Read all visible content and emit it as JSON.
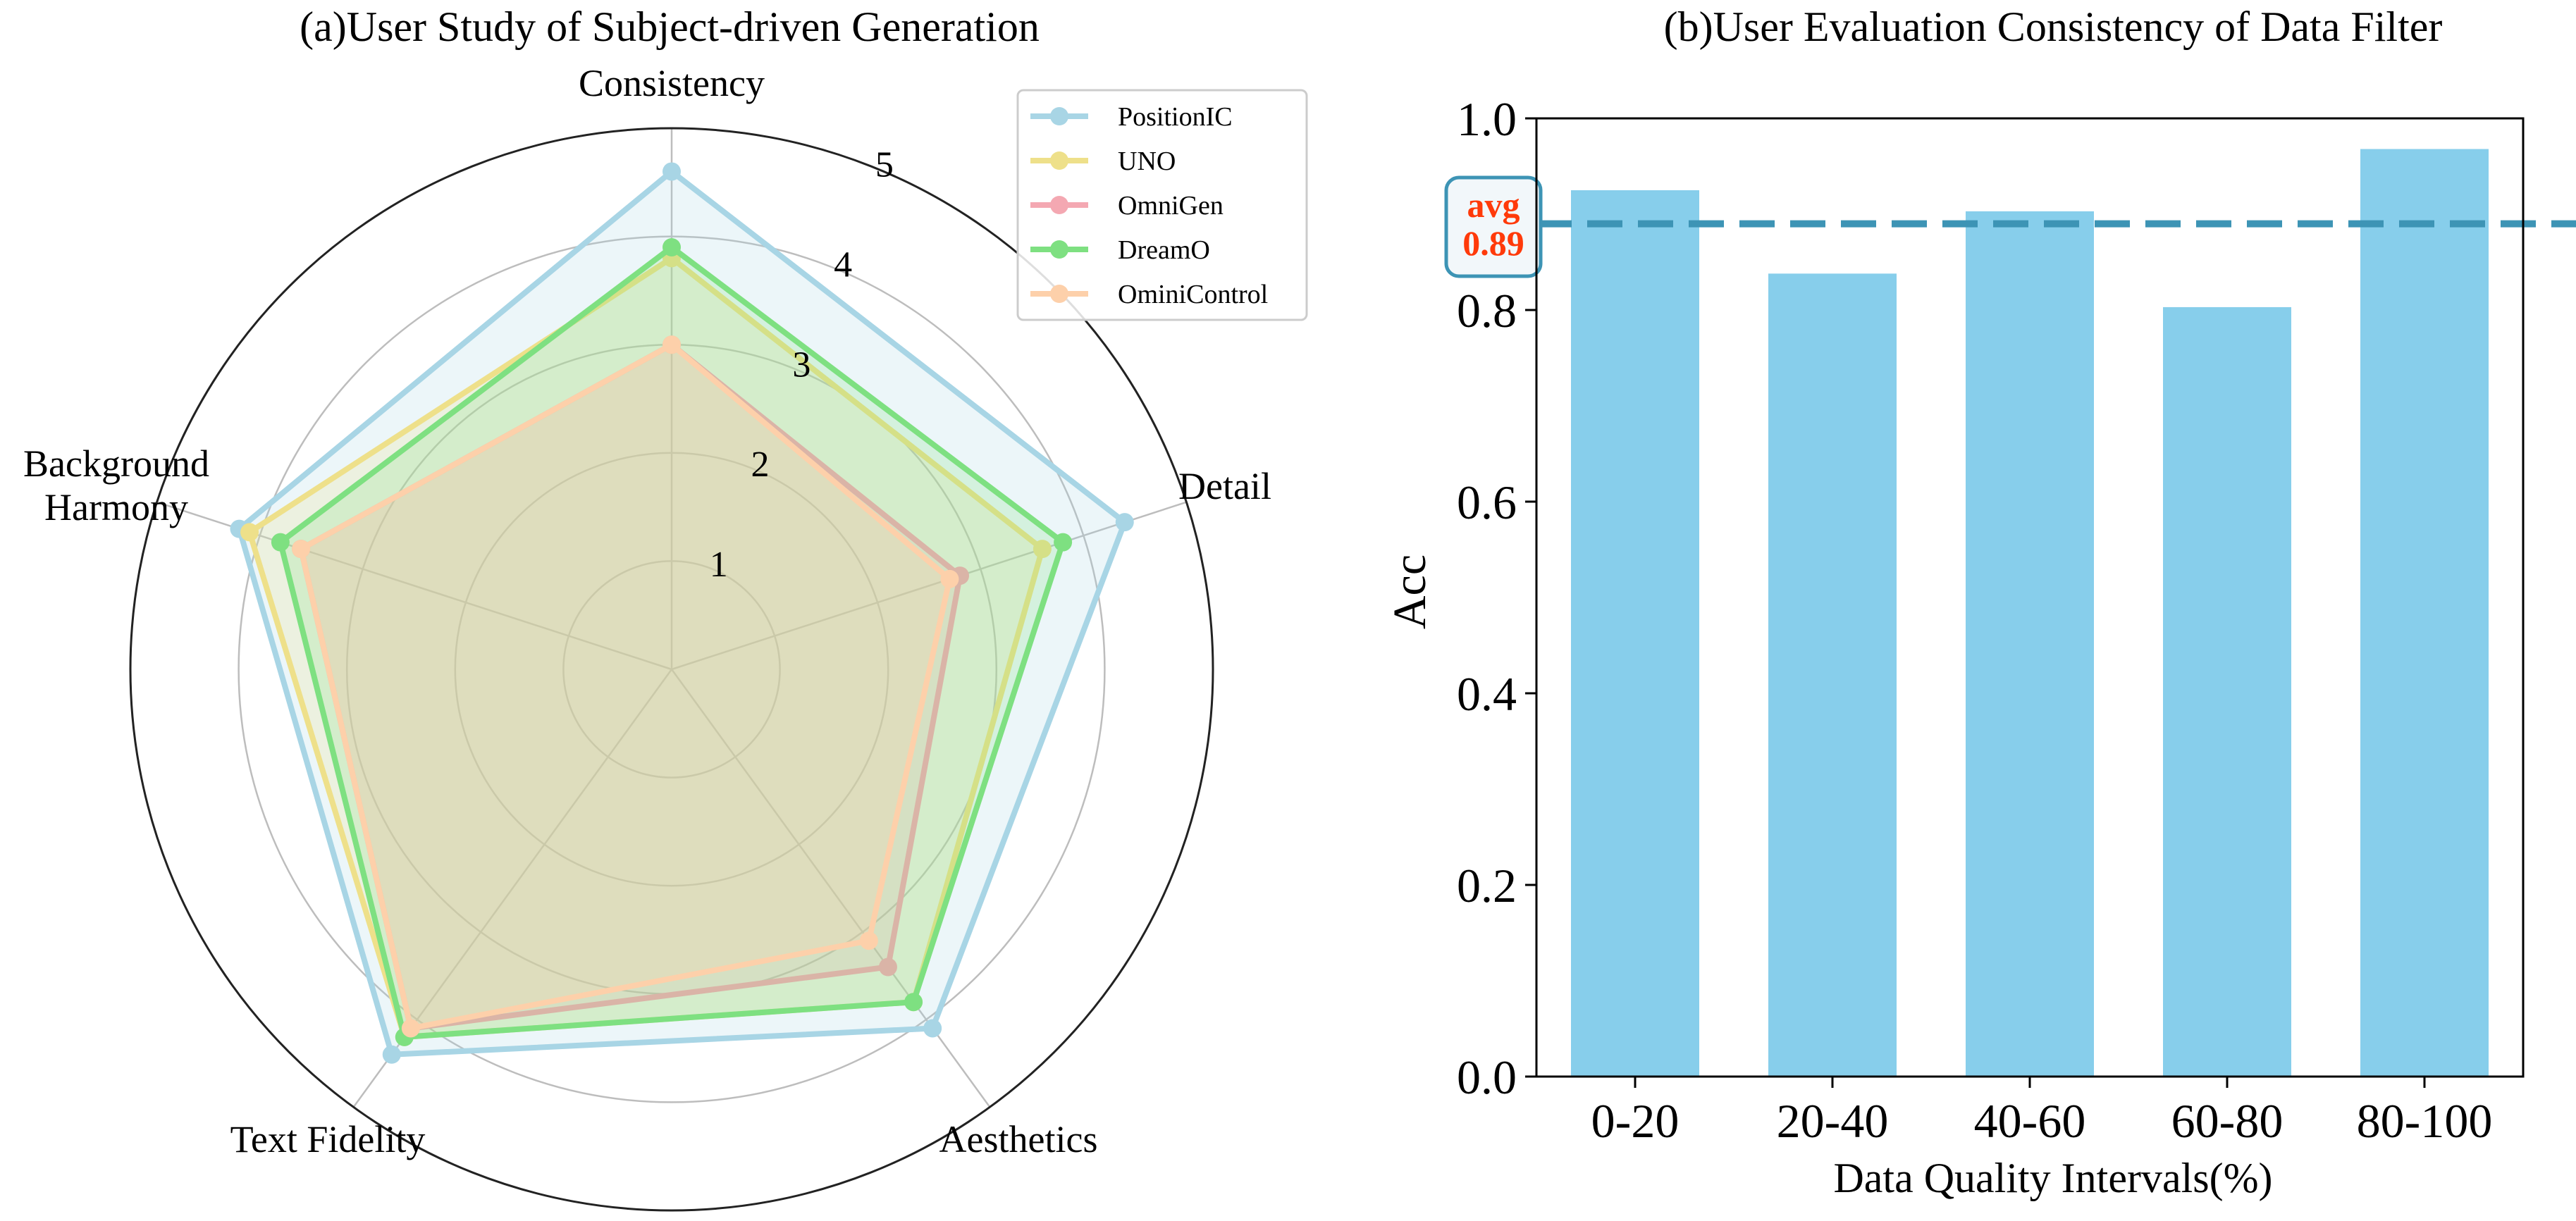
{
  "chart_data": [
    {
      "type": "radar",
      "title": "(a)User Study of Subject-driven Generation",
      "axes": [
        "Consistency",
        "Detail",
        "Aesthetics",
        "Text Fidelity",
        "Background\nHarmony"
      ],
      "radial_ticks": [
        "1",
        "2",
        "3",
        "4",
        "5"
      ],
      "rlim": [
        0,
        5
      ],
      "grid": true,
      "legend_position": "top-right",
      "series": [
        {
          "name": "PositionIC",
          "color": "#a8d5e5",
          "values": [
            4.6,
            4.4,
            4.1,
            4.4,
            4.2
          ]
        },
        {
          "name": "UNO",
          "color": "#eee08a",
          "values": [
            3.8,
            3.6,
            3.8,
            4.2,
            4.1
          ]
        },
        {
          "name": "OmniGen",
          "color": "#f4a8b2",
          "values": [
            3.0,
            2.8,
            3.4,
            4.1,
            3.6
          ]
        },
        {
          "name": "DreamO",
          "color": "#7ee081",
          "values": [
            3.9,
            3.8,
            3.8,
            4.2,
            3.8
          ]
        },
        {
          "name": "OminiControl",
          "color": "#fdd0aa",
          "values": [
            3.0,
            2.7,
            3.1,
            4.1,
            3.6
          ]
        }
      ]
    },
    {
      "type": "bar",
      "title": "(b)User Evaluation Consistency of Data Filter",
      "categories": [
        "0-20",
        "20-40",
        "40-60",
        "60-80",
        "80-100"
      ],
      "values": [
        0.925,
        0.838,
        0.903,
        0.803,
        0.968
      ],
      "bar_color": "#87ceeb",
      "xlabel": "Data Quality Intervals(%)",
      "ylabel": "Acc",
      "ylim": [
        0.0,
        1.0
      ],
      "yticks": [
        "0.0",
        "0.2",
        "0.4",
        "0.6",
        "0.8",
        "1.0"
      ],
      "reference_line": {
        "value": 0.89,
        "color": "#3d94b5"
      },
      "annotation": {
        "line1": "avg",
        "line2": "0.89",
        "text_color": "#ff3a0a",
        "border_color": "#3d94b5"
      }
    }
  ]
}
